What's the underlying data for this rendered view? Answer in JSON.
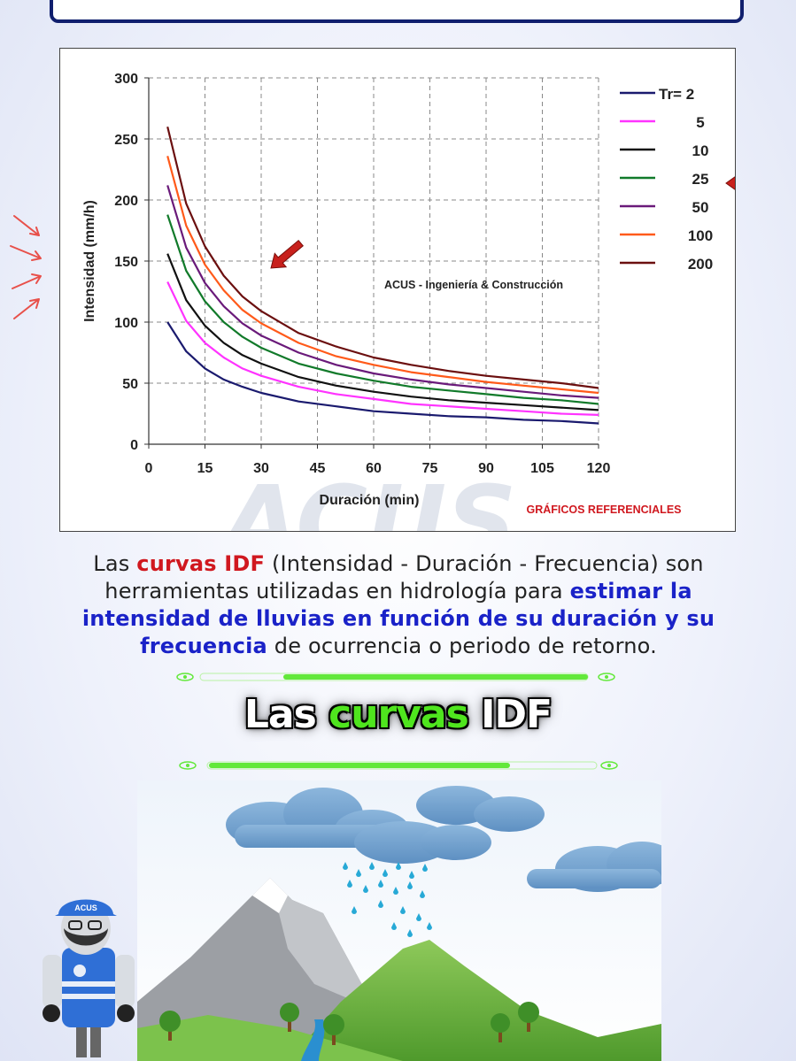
{
  "chart_data": {
    "type": "line",
    "title": "",
    "xlabel": "Duración (min)",
    "ylabel": "Intensidad (mm/h)",
    "xlim": [
      0,
      120
    ],
    "ylim": [
      0,
      300
    ],
    "xticks": [
      0,
      15,
      30,
      45,
      60,
      75,
      90,
      105,
      120
    ],
    "yticks": [
      0,
      50,
      100,
      150,
      200,
      250,
      300
    ],
    "grid": true,
    "legend_position": "top-right",
    "x": [
      5,
      10,
      15,
      20,
      25,
      30,
      40,
      50,
      60,
      70,
      80,
      90,
      100,
      110,
      120
    ],
    "series": [
      {
        "name": "Tr= 2",
        "color": "#1a1a6e",
        "values": [
          100,
          76,
          62,
          53,
          47,
          42,
          35,
          31,
          27,
          25,
          23,
          22,
          20,
          19,
          17
        ]
      },
      {
        "name": "5",
        "color": "#ff33ff",
        "values": [
          133,
          101,
          83,
          71,
          62,
          56,
          47,
          41,
          37,
          33,
          31,
          29,
          27,
          25,
          24
        ]
      },
      {
        "name": "10",
        "color": "#111111",
        "values": [
          156,
          118,
          97,
          83,
          73,
          66,
          55,
          48,
          43,
          39,
          36,
          34,
          32,
          30,
          28
        ]
      },
      {
        "name": "25",
        "color": "#117a2a",
        "values": [
          188,
          142,
          117,
          100,
          88,
          79,
          66,
          58,
          52,
          47,
          44,
          41,
          38,
          36,
          33
        ]
      },
      {
        "name": "50",
        "color": "#6a1a7a",
        "values": [
          212,
          161,
          132,
          113,
          99,
          89,
          75,
          65,
          58,
          53,
          49,
          46,
          43,
          40,
          38
        ]
      },
      {
        "name": "100",
        "color": "#ff5a1a",
        "values": [
          236,
          179,
          147,
          126,
          110,
          99,
          83,
          72,
          65,
          59,
          55,
          51,
          48,
          45,
          42
        ]
      },
      {
        "name": "200",
        "color": "#6b0f0f",
        "values": [
          260,
          197,
          162,
          138,
          121,
          109,
          91,
          80,
          71,
          65,
          60,
          56,
          53,
          50,
          46
        ]
      }
    ],
    "annotations": [
      "ACUS - Ingeniería & Construcción",
      "GRÁFICOS REFERENCIALES"
    ]
  },
  "watermark": "ACUS",
  "description": {
    "p1": "Las ",
    "h1": "curvas IDF",
    "p2": " (Intensidad - Duración - Frecuencia) son herramientas utilizadas en hidrología para ",
    "h2": "estimar la intensidad de lluvias en función de su duración y su frecuencia",
    "p3": " de ocurrencia o periodo de retorno."
  },
  "section_title": {
    "part1": "Las ",
    "part2": "curvas",
    "part3": " IDF"
  },
  "mascot_badge": "ACUS",
  "colors": {
    "accent_red": "#d0181f",
    "accent_blue": "#1a22c8",
    "accent_green": "#4fe51e",
    "frame_navy": "#101f6e"
  }
}
